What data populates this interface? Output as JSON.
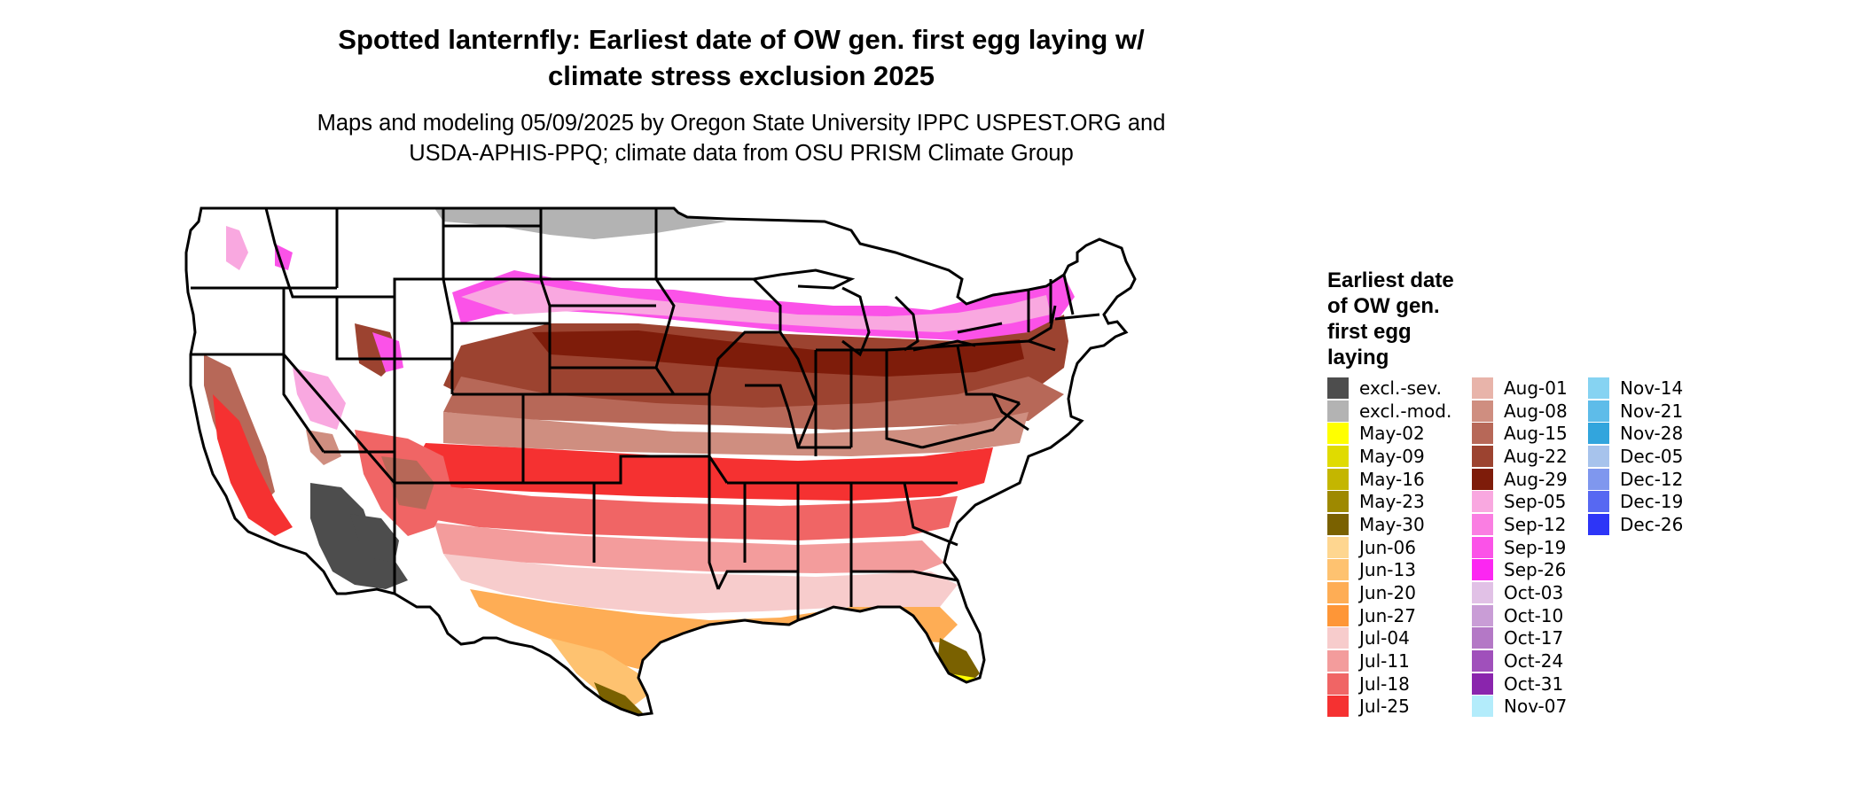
{
  "title_line1": "Spotted lanternfly: Earliest date of OW gen. first egg laying w/",
  "title_line2": "climate stress exclusion 2025",
  "subtitle_line1": "Maps and modeling 05/09/2025 by Oregon State University IPPC USPEST.ORG and",
  "subtitle_line2": "USDA-APHIS-PPQ; climate data from OSU PRISM Climate Group",
  "legend": {
    "title_lines": [
      "Earliest date",
      "of OW gen.",
      "first egg",
      "laying"
    ],
    "columns": [
      [
        {
          "label": "excl.-sev.",
          "color": "#4d4d4d"
        },
        {
          "label": "excl.-mod.",
          "color": "#b3b3b3"
        },
        {
          "label": "May-02",
          "color": "#ffff00"
        },
        {
          "label": "May-09",
          "color": "#e0db00"
        },
        {
          "label": "May-16",
          "color": "#c4b600"
        },
        {
          "label": "May-23",
          "color": "#9e8900"
        },
        {
          "label": "May-30",
          "color": "#7a6100"
        },
        {
          "label": "Jun-06",
          "color": "#fed690"
        },
        {
          "label": "Jun-13",
          "color": "#fec270"
        },
        {
          "label": "Jun-20",
          "color": "#fead55"
        },
        {
          "label": "Jun-27",
          "color": "#fe9637"
        },
        {
          "label": "Jul-04",
          "color": "#f7cccc"
        },
        {
          "label": "Jul-11",
          "color": "#f39c9c"
        },
        {
          "label": "Jul-18",
          "color": "#f06565"
        },
        {
          "label": "Jul-25",
          "color": "#f53131"
        }
      ],
      [
        {
          "label": "Aug-01",
          "color": "#e8b4aa"
        },
        {
          "label": "Aug-08",
          "color": "#cf8e80"
        },
        {
          "label": "Aug-15",
          "color": "#b76858"
        },
        {
          "label": "Aug-22",
          "color": "#9c4330"
        },
        {
          "label": "Aug-29",
          "color": "#7e1c0a"
        },
        {
          "label": "Sep-05",
          "color": "#f9a8e0"
        },
        {
          "label": "Sep-12",
          "color": "#fa7ee2"
        },
        {
          "label": "Sep-19",
          "color": "#fb52e8"
        },
        {
          "label": "Sep-26",
          "color": "#fc26f2"
        },
        {
          "label": "Oct-03",
          "color": "#e1c1e6"
        },
        {
          "label": "Oct-10",
          "color": "#c99dd6"
        },
        {
          "label": "Oct-17",
          "color": "#b478c6"
        },
        {
          "label": "Oct-24",
          "color": "#a050bb"
        },
        {
          "label": "Oct-31",
          "color": "#8a25ad"
        },
        {
          "label": "Nov-07",
          "color": "#b3ecfb"
        }
      ],
      [
        {
          "label": "Nov-14",
          "color": "#86d3f2"
        },
        {
          "label": "Nov-21",
          "color": "#5ebce9"
        },
        {
          "label": "Nov-28",
          "color": "#32a5dd"
        },
        {
          "label": "Dec-05",
          "color": "#a7c3ec"
        },
        {
          "label": "Dec-12",
          "color": "#7f97ee"
        },
        {
          "label": "Dec-19",
          "color": "#5768f2"
        },
        {
          "label": "Dec-26",
          "color": "#2d35f7"
        }
      ]
    ]
  }
}
